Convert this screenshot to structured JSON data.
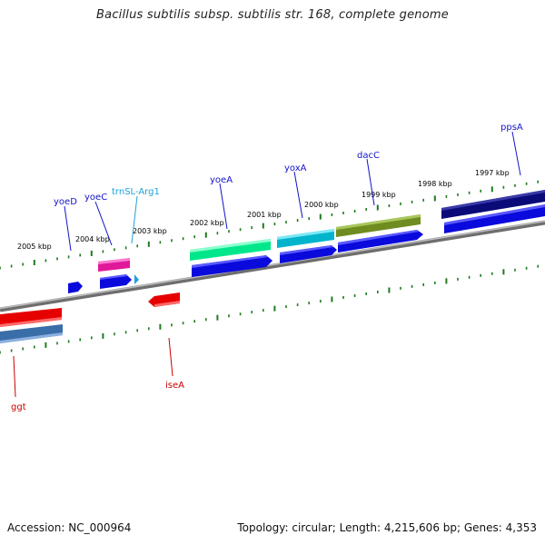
{
  "title": "Bacillus subtilis subsp. subtilis str. 168, complete genome",
  "footer": {
    "accession": "Accession: NC_000964",
    "stats": "Topology: circular; Length: 4,215,606 bp; Genes: 4,353"
  },
  "ruler_labels": [
    "2005 kbp",
    "2004 kbp",
    "2003 kbp",
    "2002 kbp",
    "2001 kbp",
    "2000 kbp",
    "1999 kbp",
    "1998 kbp",
    "1997 kbp"
  ],
  "colors": {
    "backbone": "#8a8a8a",
    "tick": "#1f7a1f",
    "forward_label": "#1414c8",
    "reverse_label": "#c80000",
    "trna_label": "#1ea0d8"
  },
  "gene_labels": {
    "yoeD": "yoeD",
    "yoeC": "yoeC",
    "trnSL_Arg1": "trnSL-Arg1",
    "yoeA": "yoeA",
    "yoxA": "yoxA",
    "dacC": "dacC",
    "ppsA": "ppsA",
    "ggt": "ggt",
    "iseA": "iseA"
  },
  "features": {
    "forward_genes": [
      "yoeD",
      "yoeC",
      "trnSL-Arg1",
      "yoeA",
      "yoxA",
      "dacC",
      "ppsA"
    ],
    "reverse_genes": [
      "ggt",
      "iseA"
    ]
  }
}
